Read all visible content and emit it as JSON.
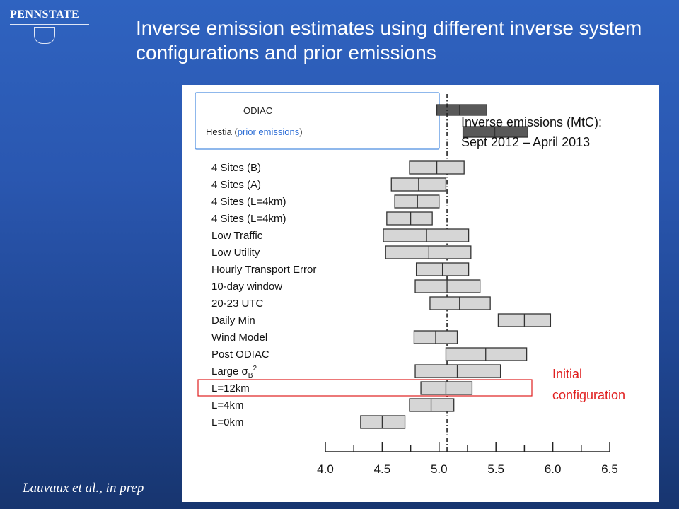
{
  "title": "Inverse emission estimates using different inverse system configurations and prior emissions",
  "logo": {
    "text": "PENNSTATE"
  },
  "citation": "Lauvaux et al., in prep",
  "chart_data": {
    "type": "boxplot",
    "annotation": "Inverse emissions (MtC):\nSept 2012 – April 2013",
    "initial_config_label": "Initial\nconfiguration",
    "xlim": [
      4.0,
      6.5
    ],
    "xticks": [
      "4.0",
      "4.5",
      "5.0",
      "5.5",
      "6.0",
      "6.5"
    ],
    "reference_line": 5.07,
    "prior": [
      {
        "label": "ODIAC",
        "low": 4.98,
        "mid": 5.18,
        "high": 5.42
      },
      {
        "label_main": "Hestia (",
        "label_accent": "prior emissions",
        "label_end": ")",
        "low": 5.21,
        "mid": 5.49,
        "high": 5.78
      }
    ],
    "rows": [
      {
        "label": "4 Sites (B)",
        "low": 4.74,
        "mid": 4.98,
        "high": 5.22
      },
      {
        "label": "4 Sites (A)",
        "low": 4.58,
        "mid": 4.82,
        "high": 5.06
      },
      {
        "label": "4 Sites (L=4km)",
        "low": 4.61,
        "mid": 4.81,
        "high": 5.0
      },
      {
        "label": "4 Sites (L=4km)",
        "low": 4.54,
        "mid": 4.75,
        "high": 4.94
      },
      {
        "label": "Low Traffic",
        "low": 4.51,
        "mid": 4.89,
        "high": 5.26
      },
      {
        "label": "Low Utility",
        "low": 4.53,
        "mid": 4.91,
        "high": 5.28
      },
      {
        "label": "Hourly Transport Error",
        "low": 4.8,
        "mid": 5.03,
        "high": 5.26
      },
      {
        "label": "10-day window",
        "low": 4.79,
        "mid": 5.07,
        "high": 5.36
      },
      {
        "label": "20-23 UTC",
        "low": 4.92,
        "mid": 5.18,
        "high": 5.45
      },
      {
        "label": "Daily Min",
        "low": 5.52,
        "mid": 5.75,
        "high": 5.98
      },
      {
        "label": "Wind Model",
        "low": 4.78,
        "mid": 4.97,
        "high": 5.16
      },
      {
        "label": "Post ODIAC",
        "low": 5.06,
        "mid": 5.41,
        "high": 5.77
      },
      {
        "label": "Large σ",
        "label_sub": "B",
        "label_sup": "2",
        "low": 4.79,
        "mid": 5.16,
        "high": 5.54
      },
      {
        "label": "L=12km",
        "low": 4.84,
        "mid": 5.06,
        "high": 5.29,
        "highlight": true
      },
      {
        "label": "L=4km",
        "low": 4.74,
        "mid": 4.93,
        "high": 5.13
      },
      {
        "label": "L=0km",
        "low": 4.31,
        "mid": 4.5,
        "high": 4.7
      }
    ],
    "colors": {
      "box_fill": "#d6d6d6",
      "prior_fill": "#595959",
      "highlight": "#e02020",
      "accent_text": "#2f6fd6",
      "legend_border": "#6aa0e6"
    }
  }
}
